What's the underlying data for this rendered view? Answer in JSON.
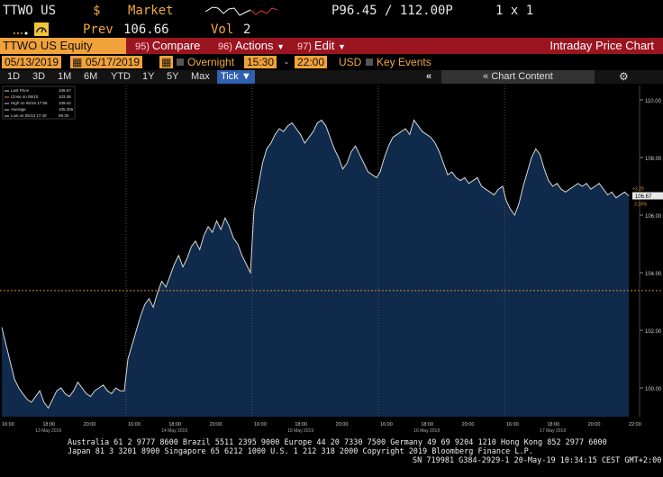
{
  "header": {
    "ticker": "TTWO US",
    "currency_symbol": "$",
    "market_label": "Market",
    "bid_ask": "P96.45 / 112.00P",
    "size": "1 x 1",
    "prev_label": "Prev",
    "prev_value": "106.66",
    "vol_label": "Vol",
    "vol_value": "2"
  },
  "toolbar": {
    "security": "TTWO US Equity",
    "compare_num": "95)",
    "compare": "Compare",
    "actions_num": "96)",
    "actions": "Actions",
    "edit_num": "97)",
    "edit": "Edit",
    "title": "Intraday Price Chart"
  },
  "settings": {
    "start_date": "05/13/2019",
    "end_date": "05/17/2019",
    "overnight": "Overnight",
    "start_time": "15:30",
    "end_time": "22:00",
    "currency": "USD",
    "key_events": "Key Events"
  },
  "periods": [
    "1D",
    "3D",
    "1M",
    "6M",
    "YTD",
    "1Y",
    "5Y",
    "Max"
  ],
  "tick_label": "Tick",
  "chart_content_label": "Chart Content",
  "legend": [
    {
      "label": "Last Price",
      "value": "106.67"
    },
    {
      "label": "Close on 05/10",
      "value": "103.38"
    },
    {
      "label": "High on 05/15 17:55",
      "value": "109.44"
    },
    {
      "label": "Average",
      "value": "105.355"
    },
    {
      "label": "Low on 05/13 17:40",
      "value": "99.30"
    }
  ],
  "last_price_tag": "106.67",
  "change_tag": "+3.29",
  "pct_tag": "3.18%",
  "colors": {
    "area": "#0f2a4a",
    "line": "#d8d8d8",
    "amber": "#f2a23a",
    "red": "#9b1521"
  },
  "chart_data": {
    "type": "area",
    "ylim": [
      99,
      110.5
    ],
    "y_ticks": [
      "110.00",
      "108.00",
      "106.00",
      "104.00",
      "102.00",
      "100.00"
    ],
    "y_tick_values": [
      110,
      108,
      106,
      104,
      102,
      100
    ],
    "reference_line": 103.38,
    "days": [
      {
        "date_label": "13 May 2019",
        "times": [
          "16:00",
          "18:00",
          "20:00"
        ]
      },
      {
        "date_label": "14 May 2019",
        "times": [
          "16:00",
          "18:00",
          "20:00"
        ]
      },
      {
        "date_label": "15 May 2019",
        "times": [
          "16:00",
          "18:00",
          "20:00"
        ]
      },
      {
        "date_label": "16 May 2019",
        "times": [
          "16:00",
          "18:00",
          "20:00"
        ]
      },
      {
        "date_label": "17 May 2019",
        "times": [
          "16:00",
          "18:00",
          "20:00",
          "22:00"
        ]
      }
    ],
    "series": [
      {
        "values": [
          [
            102.1,
            101.5,
            100.9,
            100.3,
            100.0,
            99.8,
            99.6,
            99.5,
            99.7,
            99.9,
            99.5,
            99.3,
            99.6,
            99.9,
            100.0,
            99.8,
            99.7,
            99.9,
            100.2,
            100.0,
            99.8,
            99.7,
            99.9,
            100.0,
            100.1,
            99.9,
            99.8,
            100.0,
            99.9,
            99.9
          ],
          [
            101.0,
            101.5,
            102.0,
            102.5,
            102.9,
            103.1,
            102.8,
            103.3,
            103.7,
            103.5,
            103.9,
            104.3,
            104.6,
            104.2,
            104.5,
            104.9,
            105.1,
            104.8,
            105.3,
            105.6,
            105.4,
            105.8,
            105.5,
            105.9,
            105.6,
            105.2,
            105.0,
            104.6,
            104.3,
            104.0
          ],
          [
            106.2,
            107.0,
            107.8,
            108.3,
            108.5,
            108.8,
            109.0,
            108.9,
            109.1,
            109.2,
            109.0,
            108.8,
            108.5,
            108.7,
            108.9,
            109.2,
            109.3,
            109.1,
            108.7,
            108.3,
            108.0,
            107.6,
            107.8,
            108.2,
            108.4,
            108.1,
            107.8,
            107.5,
            107.4,
            107.3
          ],
          [
            107.5,
            108.0,
            108.4,
            108.7,
            108.8,
            108.9,
            109.0,
            108.8,
            109.3,
            109.1,
            108.9,
            108.8,
            108.7,
            108.5,
            108.2,
            107.8,
            107.4,
            107.5,
            107.3,
            107.2,
            107.3,
            107.1,
            107.2,
            107.3,
            107.0,
            106.9,
            106.8,
            106.7,
            106.9,
            107.0
          ],
          [
            106.5,
            106.2,
            106.0,
            106.4,
            107.0,
            107.5,
            108.0,
            108.3,
            108.1,
            107.6,
            107.2,
            107.0,
            107.1,
            106.9,
            106.8,
            106.9,
            107.0,
            107.1,
            107.0,
            107.1,
            106.9,
            107.0,
            107.1,
            106.9,
            106.7,
            106.8,
            106.6,
            106.7,
            106.8,
            106.67
          ]
        ]
      }
    ]
  },
  "footer": {
    "line1": "Australia 61 2 9777 8600 Brazil 5511 2395 9000 Europe 44 20 7330 7500 Germany 49 69 9204 1210 Hong Kong 852 2977 6000",
    "line2": "Japan 81 3 3201 8900      Singapore 65 6212 1000      U.S. 1 212 318 2000         Copyright 2019 Bloomberg Finance L.P.",
    "line3": "SN 719981 G384-2929-1 20-May-19 10:34:15 CEST GMT+2:00"
  }
}
